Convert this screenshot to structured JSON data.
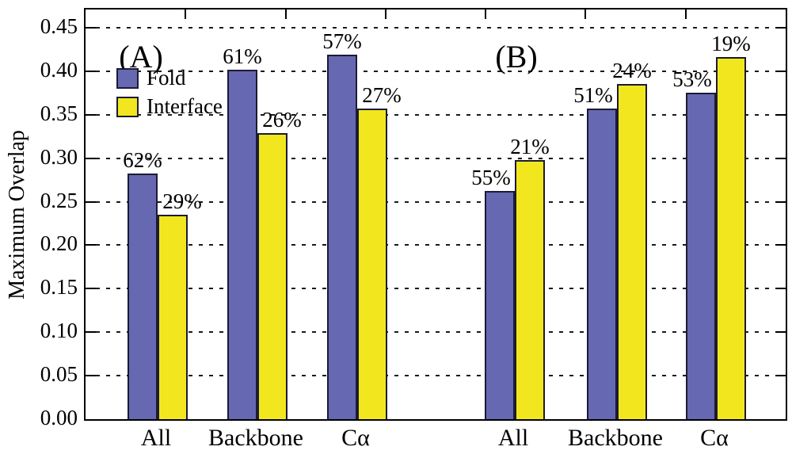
{
  "chart_data": {
    "type": "bar",
    "title": "",
    "ylabel": "Maximum Overlap",
    "xlabel": "",
    "ylim": [
      0,
      0.471
    ],
    "ytick_step": 0.05,
    "yticks": [
      "0.00",
      "0.05",
      "0.10",
      "0.15",
      "0.20",
      "0.25",
      "0.30",
      "0.35",
      "0.40",
      "0.45"
    ],
    "grid": "horizontal-dashed",
    "categories": [
      "All",
      "Backbone",
      "Cα"
    ],
    "legend": {
      "position": "upper-left-inside",
      "items": [
        {
          "label": "Fold",
          "color": "#6668b2"
        },
        {
          "label": "Interface",
          "color": "#f2e71e"
        }
      ]
    },
    "panels": [
      {
        "label": "(A)",
        "series": [
          {
            "name": "Fold",
            "color": "#6668b2",
            "values": [
              0.282,
              0.402,
              0.419
            ],
            "bar_labels": [
              "62%",
              "61%",
              "57%"
            ]
          },
          {
            "name": "Interface",
            "color": "#f2e71e",
            "values": [
              0.235,
              0.329,
              0.357
            ],
            "bar_labels": [
              "29%",
              "26%",
              "27%"
            ]
          }
        ]
      },
      {
        "label": "(B)",
        "series": [
          {
            "name": "Fold",
            "color": "#6668b2",
            "values": [
              0.262,
              0.357,
              0.375
            ],
            "bar_labels": [
              "55%",
              "51%",
              "53%"
            ]
          },
          {
            "name": "Interface",
            "color": "#f2e71e",
            "values": [
              0.298,
              0.385,
              0.416
            ],
            "bar_labels": [
              "21%",
              "24%",
              "19%"
            ]
          }
        ]
      }
    ],
    "colors": {
      "fold": "#6668b2",
      "interface": "#f2e71e",
      "bar_border": "#1b1b33",
      "axis": "#000000",
      "background": "#ffffff"
    }
  }
}
